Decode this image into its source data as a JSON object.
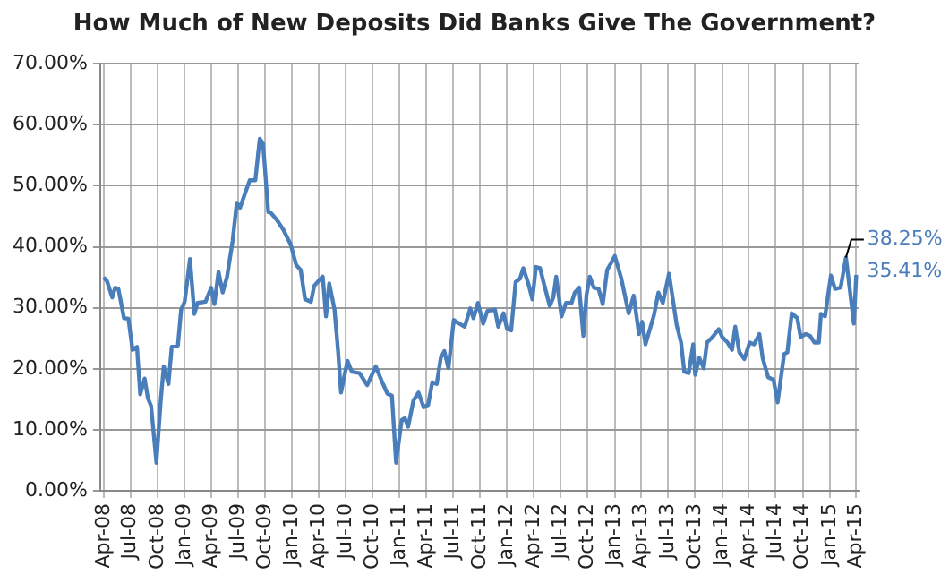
{
  "chart_data": {
    "type": "line",
    "title": "How Much of New Deposits Did Banks Give The Government?",
    "x": [
      "2008-04-01",
      "2008-04-12",
      "2008-04-30",
      "2008-05-10",
      "2008-05-21",
      "2008-06-09",
      "2008-06-24",
      "2008-07-08",
      "2008-07-23",
      "2008-08-03",
      "2008-08-18",
      "2008-08-29",
      "2008-09-09",
      "2008-09-27",
      "2008-10-12",
      "2008-10-22",
      "2008-11-07",
      "2008-11-18",
      "2008-12-09",
      "2008-12-20",
      "2009-01-01",
      "2009-01-19",
      "2009-02-03",
      "2009-02-14",
      "2009-03-13",
      "2009-04-01",
      "2009-04-12",
      "2009-04-26",
      "2009-05-10",
      "2009-05-25",
      "2009-06-13",
      "2009-06-27",
      "2009-07-08",
      "2009-07-26",
      "2009-08-10",
      "2009-08-29",
      "2009-09-13",
      "2009-09-24",
      "2009-10-12",
      "2009-10-22",
      "2009-11-10",
      "2009-12-02",
      "2009-12-27",
      "2010-01-15",
      "2010-01-30",
      "2010-02-14",
      "2010-03-06",
      "2010-03-17",
      "2010-04-08",
      "2010-04-15",
      "2010-04-26",
      "2010-05-07",
      "2010-05-25",
      "2010-06-06",
      "2010-06-16",
      "2010-07-08",
      "2010-07-23",
      "2010-08-18",
      "2010-09-13",
      "2010-10-12",
      "2010-11-03",
      "2010-11-21",
      "2010-12-06",
      "2010-12-20",
      "2011-01-08",
      "2011-01-19",
      "2011-01-30",
      "2011-02-17",
      "2011-03-06",
      "2011-03-24",
      "2011-04-08",
      "2011-04-22",
      "2011-05-07",
      "2011-05-21",
      "2011-06-02",
      "2011-06-16",
      "2011-07-04",
      "2011-07-23",
      "2011-08-10",
      "2011-08-29",
      "2011-09-09",
      "2011-09-24",
      "2011-10-12",
      "2011-10-26",
      "2011-11-21",
      "2011-12-02",
      "2011-12-20",
      "2012-01-01",
      "2012-01-15",
      "2012-01-30",
      "2012-02-14",
      "2012-02-25",
      "2012-03-13",
      "2012-03-27",
      "2012-04-08",
      "2012-04-22",
      "2012-05-07",
      "2012-05-25",
      "2012-06-06",
      "2012-06-16",
      "2012-07-04",
      "2012-07-19",
      "2012-08-07",
      "2012-08-18",
      "2012-09-02",
      "2012-09-16",
      "2012-09-27",
      "2012-10-08",
      "2012-10-22",
      "2012-11-07",
      "2012-11-21",
      "2012-12-06",
      "2012-12-20",
      "2013-01-01",
      "2013-01-23",
      "2013-02-17",
      "2013-03-06",
      "2013-03-24",
      "2013-04-04",
      "2013-04-15",
      "2013-05-14",
      "2013-05-29",
      "2013-06-13",
      "2013-07-04",
      "2013-07-19",
      "2013-07-30",
      "2013-08-14",
      "2013-08-25",
      "2013-09-09",
      "2013-09-24",
      "2013-10-01",
      "2013-10-15",
      "2013-10-30",
      "2013-11-10",
      "2013-11-29",
      "2013-12-20",
      "2014-01-01",
      "2014-01-19",
      "2014-02-03",
      "2014-02-14",
      "2014-02-28",
      "2014-03-17",
      "2014-04-04",
      "2014-04-19",
      "2014-05-07",
      "2014-05-18",
      "2014-06-06",
      "2014-06-24",
      "2014-07-08",
      "2014-07-30",
      "2014-08-10",
      "2014-08-25",
      "2014-09-13",
      "2014-09-24",
      "2014-10-12",
      "2014-10-26",
      "2014-11-10",
      "2014-11-25",
      "2014-12-02",
      "2014-12-16",
      "2015-01-05",
      "2015-01-19",
      "2015-02-07",
      "2015-02-25",
      "2015-03-24",
      "2015-04-01"
    ],
    "series": [
      {
        "color": "#4a7ebb",
        "values": [
          35.0,
          34.4,
          31.7,
          33.3,
          33.1,
          28.3,
          28.2,
          23.1,
          23.6,
          15.8,
          18.4,
          15.2,
          13.9,
          4.6,
          15.0,
          20.4,
          17.5,
          23.6,
          23.8,
          29.7,
          31.0,
          38.0,
          29.0,
          30.8,
          31.0,
          33.3,
          30.6,
          35.9,
          32.5,
          35.1,
          41.0,
          47.2,
          46.4,
          48.9,
          50.9,
          50.9,
          57.7,
          57.0,
          45.7,
          45.5,
          44.4,
          42.8,
          40.4,
          37.0,
          36.2,
          31.4,
          31.0,
          33.6,
          34.8,
          35.1,
          28.6,
          34.0,
          29.7,
          22.9,
          16.1,
          21.3,
          19.5,
          19.3,
          17.3,
          20.4,
          17.8,
          15.9,
          15.6,
          4.6,
          11.6,
          11.9,
          10.5,
          14.8,
          16.1,
          13.7,
          14.1,
          17.8,
          17.5,
          21.8,
          22.9,
          20.1,
          28.0,
          27.4,
          26.9,
          29.9,
          28.3,
          30.8,
          27.4,
          29.5,
          29.7,
          26.9,
          29.1,
          26.5,
          26.3,
          34.2,
          34.8,
          36.5,
          34.0,
          31.4,
          36.7,
          36.5,
          33.6,
          30.3,
          31.7,
          35.1,
          28.6,
          30.8,
          30.8,
          32.5,
          33.3,
          25.4,
          32.2,
          35.1,
          33.3,
          33.1,
          30.6,
          36.2,
          37.4,
          38.5,
          34.8,
          29.1,
          32.0,
          25.7,
          27.7,
          24.0,
          28.8,
          32.5,
          30.8,
          35.6,
          30.8,
          27.2,
          24.3,
          19.5,
          19.3,
          24.0,
          19.0,
          21.8,
          20.1,
          24.3,
          25.2,
          26.5,
          25.2,
          24.3,
          23.1,
          26.9,
          22.7,
          21.6,
          24.3,
          24.0,
          25.7,
          21.8,
          18.6,
          18.2,
          14.5,
          22.4,
          22.7,
          29.1,
          28.3,
          25.2,
          25.7,
          25.4,
          24.3,
          24.3,
          29.0,
          28.6,
          35.3,
          33.1,
          33.3,
          38.25,
          27.4,
          35.41
        ],
        "value_labels": [
          null,
          null,
          null,
          null,
          null,
          null,
          null,
          null,
          null,
          null,
          null,
          null,
          null,
          null,
          null,
          null,
          null,
          null,
          null,
          null,
          null,
          null,
          null,
          null,
          null,
          null,
          null,
          null,
          null,
          null,
          null,
          null,
          null,
          null,
          null,
          null,
          null,
          null,
          null,
          null,
          null,
          null,
          null,
          null,
          null,
          null,
          null,
          null,
          null,
          null,
          null,
          null,
          null,
          null,
          null,
          null,
          null,
          null,
          null,
          null,
          null,
          null,
          null,
          null,
          null,
          null,
          null,
          null,
          null,
          null,
          null,
          null,
          null,
          null,
          null,
          null,
          null,
          null,
          null,
          null,
          null,
          null,
          null,
          null,
          null,
          null,
          null,
          null,
          null,
          null,
          null,
          null,
          null,
          null,
          null,
          null,
          null,
          null,
          null,
          null,
          null,
          null,
          null,
          null,
          null,
          null,
          null,
          null,
          null,
          null,
          null,
          null,
          null,
          null,
          null,
          null,
          null,
          null,
          null,
          null,
          null,
          null,
          null,
          null,
          null,
          null,
          null,
          null,
          null,
          null,
          null,
          null,
          null,
          null,
          null,
          null,
          null,
          null,
          null,
          null,
          null,
          null,
          null,
          null,
          null,
          null,
          null,
          null,
          null,
          null,
          null,
          null,
          null,
          null,
          null,
          null,
          null,
          null,
          null,
          null,
          null,
          null,
          null,
          "38.25%",
          null,
          "35.41%"
        ]
      }
    ],
    "xlim": [
      "2008-03-20",
      "2015-04-12"
    ],
    "xticks": [
      {
        "value": "2008-04",
        "label": "Apr-08"
      },
      {
        "value": "2008-07",
        "label": "Jul-08"
      },
      {
        "value": "2008-10",
        "label": "Oct-08"
      },
      {
        "value": "2009-01",
        "label": "Jan-09"
      },
      {
        "value": "2009-04",
        "label": "Apr-09"
      },
      {
        "value": "2009-07",
        "label": "Jul-09"
      },
      {
        "value": "2009-10",
        "label": "Oct-09"
      },
      {
        "value": "2010-01",
        "label": "Jan-10"
      },
      {
        "value": "2010-04",
        "label": "Apr-10"
      },
      {
        "value": "2010-07",
        "label": "Jul-10"
      },
      {
        "value": "2010-10",
        "label": "Oct-10"
      },
      {
        "value": "2011-01",
        "label": "Jan-11"
      },
      {
        "value": "2011-04",
        "label": "Apr-11"
      },
      {
        "value": "2011-07",
        "label": "Jul-11"
      },
      {
        "value": "2011-10",
        "label": "Oct-11"
      },
      {
        "value": "2012-01",
        "label": "Jan-12"
      },
      {
        "value": "2012-04",
        "label": "Apr-12"
      },
      {
        "value": "2012-07",
        "label": "Jul-12"
      },
      {
        "value": "2012-10",
        "label": "Oct-12"
      },
      {
        "value": "2013-01",
        "label": "Jan-13"
      },
      {
        "value": "2013-04",
        "label": "Apr-13"
      },
      {
        "value": "2013-07",
        "label": "Jul-13"
      },
      {
        "value": "2013-10",
        "label": "Oct-13"
      },
      {
        "value": "2014-01",
        "label": "Jan-14"
      },
      {
        "value": "2014-04",
        "label": "Apr-14"
      },
      {
        "value": "2014-07",
        "label": "Jul-14"
      },
      {
        "value": "2014-10",
        "label": "Oct-14"
      },
      {
        "value": "2015-01",
        "label": "Jan-15"
      },
      {
        "value": "2015-04",
        "label": "Apr-15"
      }
    ],
    "ylim": [
      0,
      70
    ],
    "yticks": [
      {
        "value": 0,
        "label": "0.00%"
      },
      {
        "value": 10,
        "label": "10.00%"
      },
      {
        "value": 20,
        "label": "20.00%"
      },
      {
        "value": 30,
        "label": "30.00%"
      },
      {
        "value": 40,
        "label": "40.00%"
      },
      {
        "value": 50,
        "label": "50.00%"
      },
      {
        "value": 60,
        "label": "60.00%"
      },
      {
        "value": 70,
        "label": "70.00%"
      }
    ],
    "grid": true,
    "legend": false,
    "marker": "none",
    "line_style": "solid"
  }
}
